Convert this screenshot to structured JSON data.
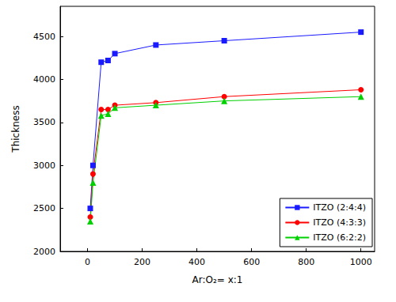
{
  "chart_data": {
    "type": "line",
    "x_label": "Ar:O₂= x:1",
    "y_label": "Thickness",
    "x": [
      10,
      20,
      50,
      75,
      100,
      250,
      500,
      1000
    ],
    "series": [
      {
        "name": "ITZO (2:4:4)",
        "color": "#1a1aff",
        "marker": "square",
        "values": [
          2500,
          3000,
          4200,
          4220,
          4300,
          4400,
          4450,
          4550
        ]
      },
      {
        "name": "ITZO (4:3:3)",
        "color": "#ff0000",
        "marker": "circle",
        "values": [
          2400,
          2900,
          3650,
          3650,
          3700,
          3730,
          3800,
          3880
        ]
      },
      {
        "name": "ITZO (6:2:2)",
        "color": "#00d000",
        "marker": "triangle",
        "values": [
          2350,
          2800,
          3580,
          3600,
          3670,
          3700,
          3750,
          3800
        ]
      }
    ],
    "xlim": [
      -100,
      1050
    ],
    "xticks": [
      0,
      200,
      400,
      600,
      800,
      1000
    ],
    "ylim": [
      2000,
      4850
    ],
    "yticks": [
      2000,
      2500,
      3000,
      3500,
      4000,
      4500
    ],
    "grid": false,
    "legend": "lower right"
  }
}
